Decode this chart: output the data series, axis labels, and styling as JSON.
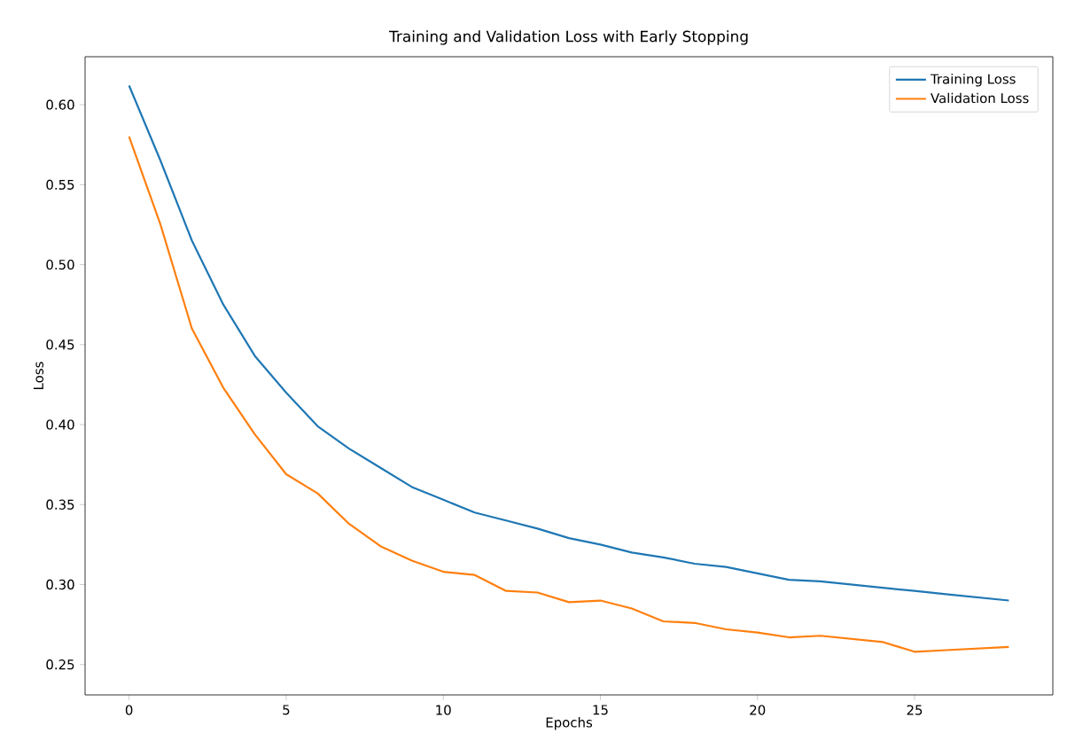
{
  "chart_data": {
    "type": "line",
    "title": "Training and Validation Loss with Early Stopping",
    "xlabel": "Epochs",
    "ylabel": "Loss",
    "x": [
      0,
      1,
      2,
      3,
      4,
      5,
      6,
      7,
      8,
      9,
      10,
      11,
      12,
      13,
      14,
      15,
      16,
      17,
      18,
      19,
      20,
      21,
      22,
      23,
      24,
      25,
      26,
      27,
      28
    ],
    "series": [
      {
        "name": "Training Loss",
        "color": "#1f77b4",
        "values": [
          0.612,
          0.565,
          0.515,
          0.475,
          0.443,
          0.42,
          0.399,
          0.385,
          0.373,
          0.361,
          0.353,
          0.345,
          0.34,
          0.335,
          0.329,
          0.325,
          0.32,
          0.317,
          0.313,
          0.311,
          0.307,
          0.303,
          0.302,
          0.3,
          0.298,
          0.296,
          0.294,
          0.292,
          0.29
        ]
      },
      {
        "name": "Validation Loss",
        "color": "#ff7f0e",
        "values": [
          0.58,
          0.525,
          0.46,
          0.423,
          0.394,
          0.369,
          0.357,
          0.338,
          0.324,
          0.315,
          0.308,
          0.306,
          0.296,
          0.295,
          0.289,
          0.29,
          0.285,
          0.277,
          0.276,
          0.272,
          0.27,
          0.267,
          0.268,
          0.266,
          0.264,
          0.258,
          0.259,
          0.26,
          0.261
        ]
      }
    ],
    "xlim": [
      -1.4,
      29.4
    ],
    "ylim": [
      0.231,
      0.63
    ],
    "xticks": [
      0,
      5,
      10,
      15,
      20,
      25
    ],
    "yticks": [
      0.25,
      {
        "value": 0.3,
        "label": "0.30"
      },
      0.35,
      {
        "value": 0.4,
        "label": "0.40"
      },
      0.45,
      {
        "value": 0.5,
        "label": "0.50"
      },
      0.55,
      {
        "value": 0.6,
        "label": "0.60"
      }
    ],
    "legend": "top right",
    "grid": false,
    "marker": "none",
    "line_style": "solid"
  }
}
